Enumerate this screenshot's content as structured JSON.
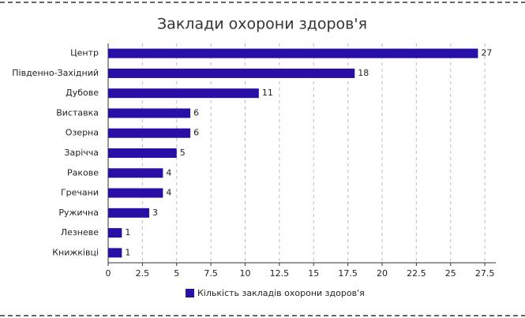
{
  "chart_data": {
    "type": "bar",
    "orientation": "horizontal",
    "title": "Заклади охорони здоров'я",
    "categories": [
      "Центр",
      "Південно-Західний",
      "Дубове",
      "Виставка",
      "Озерна",
      "Зарічча",
      "Ракове",
      "Гречани",
      "Ружична",
      "Лезневе",
      "Книжківці"
    ],
    "series": [
      {
        "name": "Кількість закладів охорони здоров'я",
        "color": "#2a0fa6",
        "values": [
          27,
          18,
          11,
          6,
          6,
          5,
          4,
          4,
          3,
          1,
          1
        ]
      }
    ],
    "xlim": [
      0,
      28.3
    ],
    "xticks": [
      0,
      2.5,
      5,
      7.5,
      10,
      12.5,
      15,
      17.5,
      20,
      22.5,
      25,
      27.5
    ],
    "grid": true,
    "legend": "bottom"
  }
}
